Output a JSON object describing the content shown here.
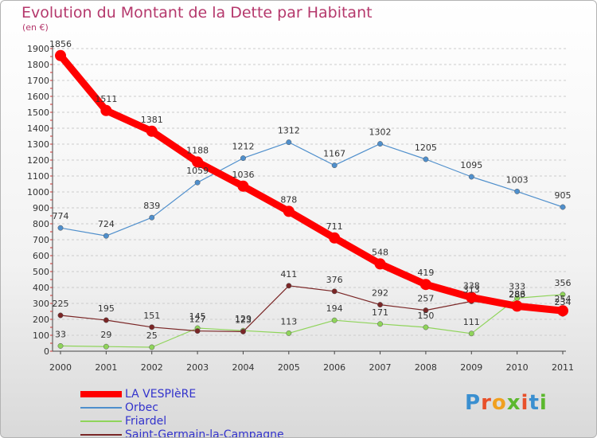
{
  "title": "Evolution du Montant de la Dette par Habitant",
  "unit": "(en €)",
  "brand": "Proxiti",
  "colors": {
    "title": "#b5386c",
    "grid": "#cccccc",
    "legend_text": "#3333cc"
  },
  "chart_data": {
    "type": "line",
    "title": "Evolution du Montant de la Dette par Habitant",
    "ylabel": "(en €)",
    "xlabel": "",
    "x": [
      "2000",
      "2001",
      "2002",
      "2003",
      "2004",
      "2005",
      "2006",
      "2007",
      "2008",
      "2009",
      "2010",
      "2011"
    ],
    "ylim": [
      0,
      1900
    ],
    "yticks": [
      0,
      100,
      200,
      300,
      400,
      500,
      600,
      700,
      800,
      900,
      1000,
      1100,
      1200,
      1300,
      1400,
      1500,
      1600,
      1700,
      1800,
      1900
    ],
    "grid": "horizontal",
    "legend": "bottom-left",
    "series": [
      {
        "name": "LA VESPIèRE",
        "color": "#ff0000",
        "values": [
          1856,
          1511,
          1381,
          1188,
          1036,
          878,
          711,
          548,
          419,
          338,
          283,
          254
        ]
      },
      {
        "name": "Orbec",
        "color": "#4f8fcc",
        "values": [
          774,
          724,
          839,
          1059,
          1212,
          1312,
          1167,
          1302,
          1205,
          1095,
          1003,
          905
        ]
      },
      {
        "name": "Friardel",
        "color": "#8fd45a",
        "values": [
          33,
          29,
          25,
          145,
          129,
          113,
          194,
          171,
          150,
          111,
          333,
          356
        ]
      },
      {
        "name": "Saint-Germain-la-Campagne",
        "color": "#7a2626",
        "values": [
          225,
          195,
          151,
          127,
          123,
          411,
          376,
          292,
          257,
          313,
          286,
          234
        ]
      }
    ]
  }
}
